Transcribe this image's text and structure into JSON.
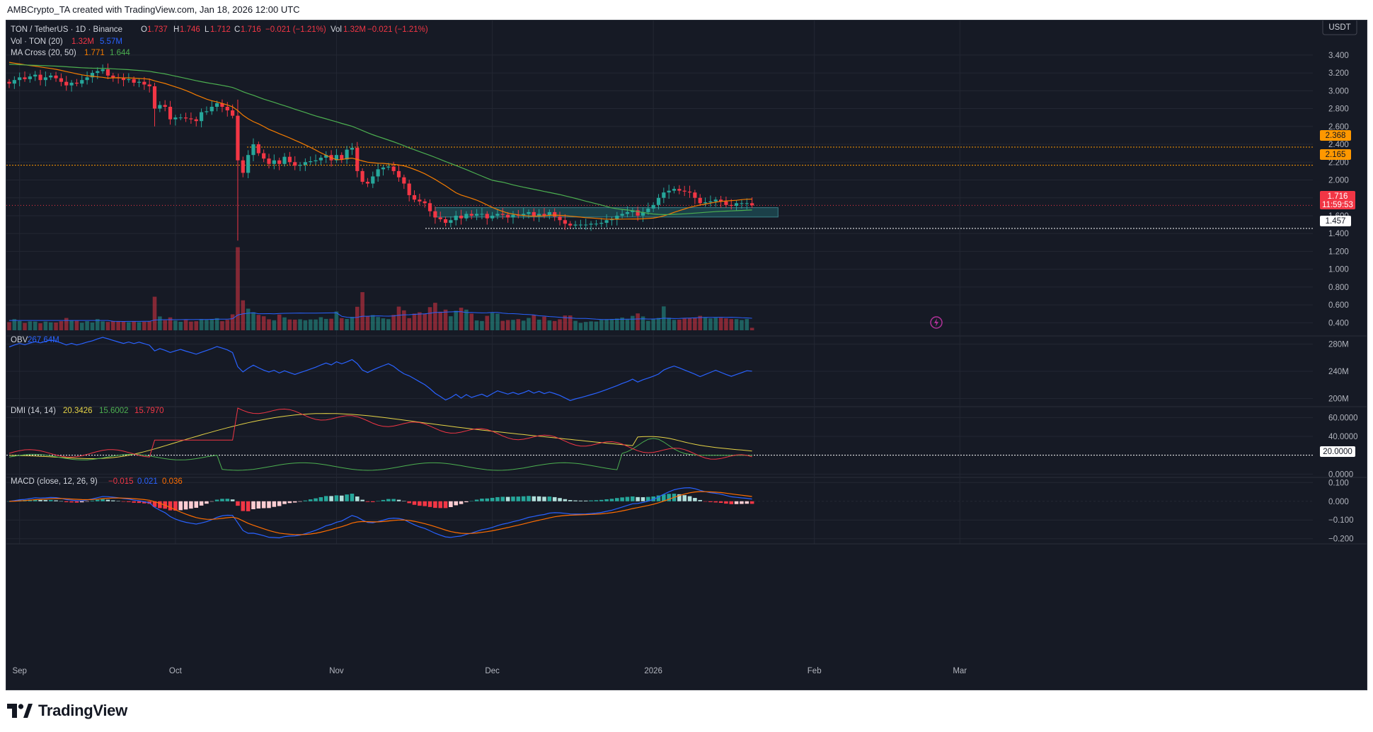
{
  "watermark": "AMBCrypto_TA created with TradingView.com, Jan 18, 2026 12:00 UTC",
  "brand": "TradingView",
  "currency_button": "USDT",
  "legend": {
    "symbol": "TON / TetherUS · 1D · Binance",
    "o_label": "O",
    "o": "1.737",
    "h_label": "H",
    "h": "1.746",
    "l_label": "L",
    "l": "1.712",
    "c_label": "C",
    "c": "1.716",
    "change": "−0.021 (−1.21%)",
    "vol_label": "Vol",
    "vol": "1.32M",
    "vol_change": "−0.021 (−1.21%)",
    "vol_ind": "Vol · TON (20)",
    "vol_v1": "1.32M",
    "vol_v2": "5.57M",
    "ma_ind": "MA Cross (20, 50)",
    "ma_v1": "1.771",
    "ma_v2": "1.644",
    "obv_ind": "OBV",
    "obv_v": "267.64M",
    "dmi_ind": "DMI (14, 14)",
    "dmi_v1": "20.3426",
    "dmi_v2": "15.6002",
    "dmi_v3": "15.7970",
    "macd_ind": "MACD (close, 12, 26, 9)",
    "macd_v1": "−0.015",
    "macd_v2": "0.021",
    "macd_v3": "0.036"
  },
  "price_tags": {
    "r1": "2.368",
    "r2": "2.165",
    "current": "1.716",
    "countdown": "11:59:53",
    "support": "1.457",
    "dmi_level": "20.0000"
  },
  "colors": {
    "bg": "#161a25",
    "grid": "#232733",
    "text": "#b2b5be",
    "up": "#26a69a",
    "down": "#f23645",
    "ma_fast": "#f57c00",
    "ma_slow": "#4caf50",
    "obv": "#2962ff",
    "adx": "#e5d346",
    "di_plus": "#4caf50",
    "di_minus": "#f23645",
    "macd": "#2962ff",
    "signal": "#ff6d00",
    "orange_tag": "#ff9800",
    "zone": "#1e4e56"
  },
  "chart_data": [
    {
      "type": "candlestick",
      "title": "TON / TetherUS · 1D · Binance",
      "x_labels": [
        "Sep",
        "Oct",
        "Nov",
        "Dec",
        "2026",
        "Feb",
        "Mar"
      ],
      "y_ticks": [
        "3.400",
        "3.200",
        "3.000",
        "2.800",
        "2.600",
        "2.400",
        "2.200",
        "2.000",
        "1.800",
        "1.600",
        "1.400",
        "1.200",
        "1.000",
        "0.800",
        "0.600",
        "0.400"
      ],
      "ylim": [
        0.3,
        3.47
      ],
      "start_date": "Aug 30, 2025",
      "end_date": "Jan 18, 2026",
      "closes": [
        3.08,
        3.12,
        3.15,
        3.13,
        3.16,
        3.18,
        3.12,
        3.15,
        3.17,
        3.14,
        3.1,
        3.06,
        3.09,
        3.08,
        3.12,
        3.15,
        3.2,
        3.22,
        3.24,
        3.17,
        3.15,
        3.14,
        3.12,
        3.13,
        3.09,
        3.1,
        3.07,
        3.05,
        2.8,
        2.84,
        2.82,
        2.68,
        2.7,
        2.7,
        2.69,
        2.68,
        2.66,
        2.76,
        2.77,
        2.82,
        2.86,
        2.82,
        2.78,
        2.72,
        2.22,
        2.08,
        2.28,
        2.4,
        2.3,
        2.24,
        2.18,
        2.22,
        2.18,
        2.26,
        2.2,
        2.16,
        2.17,
        2.2,
        2.21,
        2.22,
        2.25,
        2.28,
        2.22,
        2.28,
        2.23,
        2.34,
        2.36,
        2.1,
        1.98,
        1.96,
        2.04,
        2.12,
        2.14,
        2.15,
        2.1,
        2.03,
        1.96,
        1.83,
        1.78,
        1.76,
        1.74,
        1.65,
        1.58,
        1.56,
        1.52,
        1.55,
        1.6,
        1.57,
        1.62,
        1.6,
        1.62,
        1.62,
        1.57,
        1.6,
        1.62,
        1.61,
        1.58,
        1.61,
        1.6,
        1.62,
        1.64,
        1.6,
        1.62,
        1.6,
        1.64,
        1.59,
        1.55,
        1.51,
        1.49,
        1.5,
        1.5,
        1.5,
        1.51,
        1.51,
        1.52,
        1.55,
        1.56,
        1.6,
        1.62,
        1.64,
        1.66,
        1.6,
        1.64,
        1.68,
        1.72,
        1.8,
        1.86,
        1.88,
        1.9,
        1.88,
        1.87,
        1.86,
        1.8,
        1.74,
        1.75,
        1.76,
        1.78,
        1.76,
        1.72,
        1.71,
        1.74,
        1.74,
        1.74,
        1.716
      ],
      "series": [
        {
          "name": "MA 20",
          "value": "1.771"
        },
        {
          "name": "MA 50",
          "value": "1.644"
        }
      ]
    },
    {
      "type": "bar",
      "title": "Vol · TON (20)",
      "volume_millions": [
        4.3,
        5.9,
        4.9,
        3.9,
        4.7,
        4.6,
        3.7,
        4.6,
        4.2,
        4.1,
        4.8,
        6.5,
        5.1,
        5.0,
        4.0,
        4.8,
        4.1,
        5.9,
        4.7,
        4.4,
        4.9,
        4.8,
        4.7,
        4.3,
        4.7,
        4.3,
        4.5,
        4.8,
        17.7,
        7.3,
        5.3,
        6.8,
        5.1,
        4.5,
        5.4,
        4.6,
        4.8,
        5.9,
        5.5,
        5.8,
        6.4,
        4.8,
        5.5,
        8.4,
        43.8,
        15.8,
        11.4,
        9.5,
        8.1,
        7.4,
        5.8,
        5.3,
        8.3,
        6.8,
        5.7,
        5.6,
        5.8,
        5.3,
        5.7,
        5.7,
        6.9,
        6.0,
        6.1,
        9.9,
        6.4,
        6.0,
        7.1,
        12.4,
        20.1,
        7.4,
        8.0,
        7.0,
        6.3,
        5.9,
        8.1,
        12.5,
        10.5,
        6.4,
        8.8,
        9.5,
        8.8,
        12.2,
        14.5,
        9.8,
        10.9,
        7.4,
        10.3,
        11.9,
        10.9,
        8.8,
        5.2,
        4.9,
        7.6,
        9.2,
        8.8,
        5.0,
        5.4,
        5.5,
        5.9,
        5.1,
        6.5,
        8.0,
        5.6,
        7.2,
        5.2,
        4.9,
        5.8,
        7.8,
        7.8,
        5.0,
        3.9,
        4.4,
        4.7,
        4.6,
        5.5,
        5.6,
        5.9,
        6.2,
        6.7,
        5.7,
        7.6,
        8.9,
        7.3,
        5.0,
        5.8,
        6.5,
        12.6,
        6.6,
        5.5,
        5.6,
        6.5,
        6.4,
        6.5,
        7.6,
        6.9,
        6.3,
        6.6,
        6.6,
        6.3,
        5.9,
        5.9,
        5.4,
        6.0,
        1.32
      ],
      "series": [
        {
          "name": "Vol",
          "value": "1.32M"
        },
        {
          "name": "Vol MA",
          "value": "5.57M"
        }
      ]
    },
    {
      "type": "line",
      "title": "OBV",
      "y_ticks": [
        "280M",
        "240M",
        "200M"
      ],
      "ylim": [
        190,
        290
      ],
      "series": [
        {
          "name": "OBV",
          "value": "267.64M"
        }
      ]
    },
    {
      "type": "line",
      "title": "DMI (14, 14)",
      "y_ticks": [
        "60.0000",
        "40.0000",
        "20.0000",
        "0.0000"
      ],
      "ylim": [
        -2,
        70
      ],
      "series": [
        {
          "name": "ADX",
          "value": "20.3426"
        },
        {
          "name": "+DI",
          "value": "15.6002"
        },
        {
          "name": "−DI",
          "value": "15.7970"
        }
      ]
    },
    {
      "type": "bar",
      "title": "MACD (close, 12, 26, 9)",
      "y_ticks": [
        "0.100",
        "0.000",
        "−0.100",
        "−0.200"
      ],
      "ylim": [
        -0.22,
        0.12
      ],
      "series": [
        {
          "name": "Histogram",
          "value": "−0.015"
        },
        {
          "name": "MACD",
          "value": "0.021"
        },
        {
          "name": "Signal",
          "value": "0.036"
        }
      ]
    }
  ]
}
